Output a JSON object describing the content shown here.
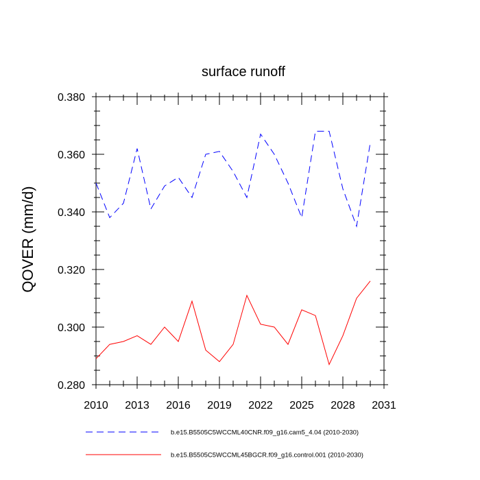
{
  "chart_data": {
    "type": "line",
    "title": "surface runoff",
    "xlabel": "",
    "ylabel": "QOVER  (mm/d)",
    "xlim": [
      2010,
      2031
    ],
    "ylim": [
      0.28,
      0.38
    ],
    "xticks": [
      2010,
      2013,
      2016,
      2019,
      2022,
      2025,
      2028,
      2031
    ],
    "yticks": [
      0.28,
      0.3,
      0.32,
      0.34,
      0.36,
      0.38
    ],
    "ytick_labels": [
      "0.280",
      "0.300",
      "0.320",
      "0.340",
      "0.360",
      "0.380"
    ],
    "grid": false,
    "legend_position": "bottom",
    "x": [
      2010,
      2011,
      2012,
      2013,
      2014,
      2015,
      2016,
      2017,
      2018,
      2019,
      2020,
      2021,
      2022,
      2023,
      2024,
      2025,
      2026,
      2027,
      2028,
      2029,
      2030
    ],
    "series": [
      {
        "name": "b.e15.B5505C5WCCML40CNR.f09_g16.cam5_4.04 (2010-2030)",
        "color": "#0000ff",
        "dash": "dashed",
        "values": [
          0.35,
          0.338,
          0.343,
          0.362,
          0.341,
          0.349,
          0.352,
          0.345,
          0.36,
          0.361,
          0.354,
          0.345,
          0.367,
          0.36,
          0.35,
          0.338,
          0.368,
          0.368,
          0.348,
          0.335,
          0.364
        ]
      },
      {
        "name": "b.e15.B5505C5WCCML45BGCR.f09_g16.control.001 (2010-2030)",
        "color": "#ff0000",
        "dash": "solid",
        "values": [
          0.289,
          0.294,
          0.295,
          0.297,
          0.294,
          0.3,
          0.295,
          0.309,
          0.292,
          0.288,
          0.294,
          0.311,
          0.301,
          0.3,
          0.294,
          0.306,
          0.304,
          0.287,
          0.297,
          0.31,
          0.316
        ]
      }
    ]
  }
}
